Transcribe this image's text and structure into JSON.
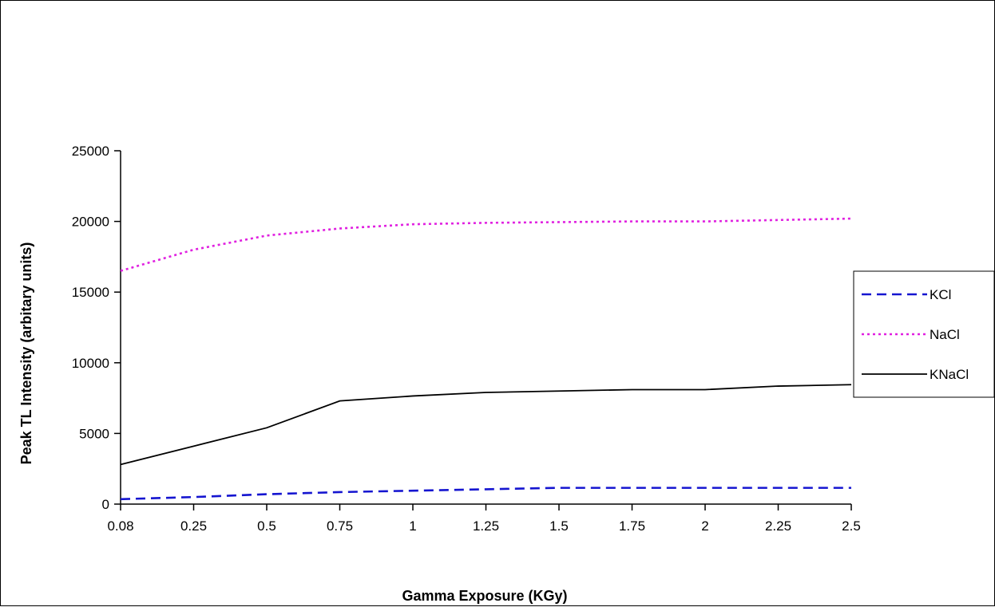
{
  "chart_data": {
    "type": "line",
    "title": "",
    "xlabel": "Gamma Exposure (KGy)",
    "ylabel": "Peak TL Intensity (arbitary units)",
    "categories": [
      "0.08",
      "0.25",
      "0.5",
      "0.75",
      "1",
      "1.25",
      "1.5",
      "1.75",
      "2",
      "2.25",
      "2.5"
    ],
    "ylim": [
      0,
      25000
    ],
    "yticks": [
      0,
      5000,
      10000,
      15000,
      20000,
      25000
    ],
    "grid": false,
    "legend_position": "right",
    "series": [
      {
        "name": "KCl",
        "color": "#1515d0",
        "dash": "dashed",
        "values": [
          350,
          500,
          700,
          850,
          950,
          1050,
          1150,
          1150,
          1150,
          1150,
          1150
        ]
      },
      {
        "name": "NaCl",
        "color": "#e020e0",
        "dash": "dotted",
        "values": [
          16500,
          18000,
          19000,
          19500,
          19800,
          19900,
          19950,
          20000,
          20000,
          20100,
          20200
        ]
      },
      {
        "name": "KNaCl",
        "color": "#000000",
        "dash": "solid",
        "values": [
          2800,
          4100,
          5400,
          7300,
          7650,
          7900,
          8000,
          8100,
          8100,
          8350,
          8450
        ]
      }
    ]
  }
}
